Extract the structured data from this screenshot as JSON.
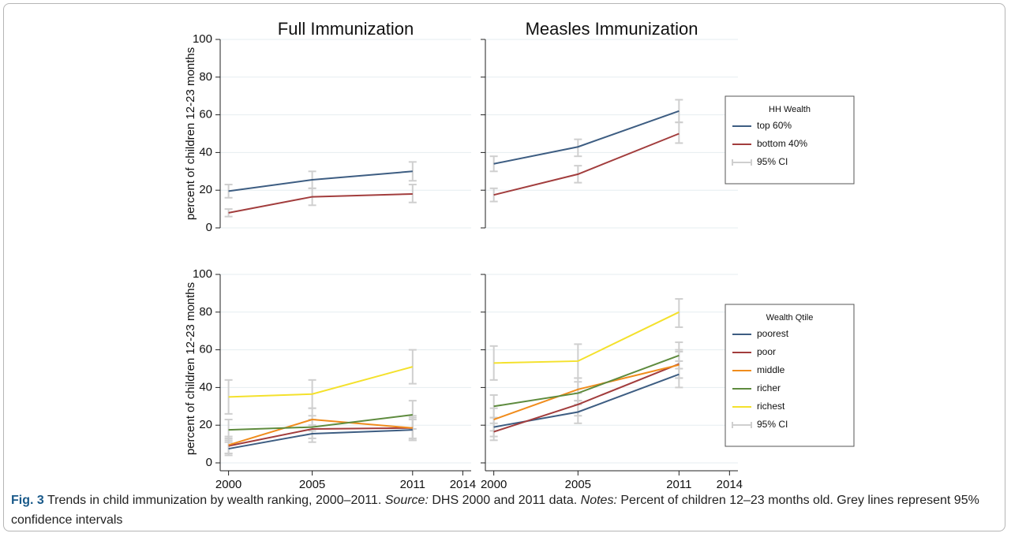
{
  "chart_data": [
    {
      "type": "line",
      "title": "Full Immunization",
      "ylabel": "percent of children 12-23 months",
      "x": [
        2000,
        2005,
        2011
      ],
      "xlim": [
        1999.5,
        2014.5
      ],
      "ylim": [
        0,
        100
      ],
      "yticks": [
        0,
        20,
        40,
        60,
        80,
        100
      ],
      "ytick_labels": true,
      "grid": true,
      "series": [
        {
          "name": "top 60%",
          "color": "#3d5d82",
          "values": [
            19.5,
            25.5,
            30
          ],
          "ci_low": [
            16,
            21,
            25
          ],
          "ci_high": [
            23,
            30,
            35
          ]
        },
        {
          "name": "bottom 40%",
          "color": "#a23d3d",
          "values": [
            8,
            16.5,
            18
          ],
          "ci_low": [
            6,
            12,
            13.5
          ],
          "ci_high": [
            10,
            21,
            23
          ]
        }
      ]
    },
    {
      "type": "line",
      "title": "Measles Immunization",
      "x": [
        2000,
        2005,
        2011
      ],
      "xlim": [
        1999.5,
        2014.5
      ],
      "ylim": [
        0,
        100
      ],
      "yticks": [
        0,
        20,
        40,
        60,
        80,
        100
      ],
      "ytick_labels": false,
      "grid": true,
      "legend": {
        "title": "HH Wealth",
        "ci_label": "95% CI"
      },
      "series": [
        {
          "name": "top 60%",
          "color": "#3d5d82",
          "values": [
            34,
            43,
            62
          ],
          "ci_low": [
            30,
            38,
            56
          ],
          "ci_high": [
            38,
            47,
            68
          ]
        },
        {
          "name": "bottom 40%",
          "color": "#a23d3d",
          "values": [
            17.5,
            28.5,
            50
          ],
          "ci_low": [
            14,
            24,
            45
          ],
          "ci_high": [
            21,
            33,
            56
          ]
        }
      ]
    },
    {
      "type": "line",
      "ylabel": "percent of children 12-23 months",
      "x": [
        2000,
        2005,
        2011
      ],
      "xlim": [
        1999.5,
        2014.5
      ],
      "xticks": [
        2000,
        2005,
        2011,
        2014
      ],
      "ylim": [
        0,
        100
      ],
      "yticks": [
        0,
        20,
        40,
        60,
        80,
        100
      ],
      "ytick_labels": true,
      "grid": true,
      "series": [
        {
          "name": "poorest",
          "color": "#3d5d82",
          "values": [
            7.5,
            15.5,
            17.5
          ],
          "ci_low": [
            4,
            11,
            12
          ],
          "ci_high": [
            11,
            20,
            23
          ]
        },
        {
          "name": "poor",
          "color": "#a23d3d",
          "values": [
            9,
            18,
            18.5
          ],
          "ci_low": [
            5,
            13,
            13
          ],
          "ci_high": [
            13,
            23,
            24
          ]
        },
        {
          "name": "middle",
          "color": "#f08c1c",
          "values": [
            9.5,
            23,
            18.5
          ],
          "ci_low": [
            5,
            17,
            12
          ],
          "ci_high": [
            14,
            29,
            25
          ]
        },
        {
          "name": "richer",
          "color": "#5e8b3e",
          "values": [
            17.5,
            19,
            25.5
          ],
          "ci_low": [
            12,
            13,
            18
          ],
          "ci_high": [
            23,
            25,
            33
          ]
        },
        {
          "name": "richest",
          "color": "#f4e12c",
          "values": [
            35,
            36.5,
            51
          ],
          "ci_low": [
            26,
            29,
            42
          ],
          "ci_high": [
            44,
            44,
            60
          ]
        }
      ]
    },
    {
      "type": "line",
      "x": [
        2000,
        2005,
        2011
      ],
      "xlim": [
        1999.5,
        2014.5
      ],
      "xticks": [
        2000,
        2005,
        2011,
        2014
      ],
      "ylim": [
        0,
        100
      ],
      "yticks": [
        0,
        20,
        40,
        60,
        80,
        100
      ],
      "ytick_labels": false,
      "grid": true,
      "legend": {
        "title": "Wealth Qtile",
        "ci_label": "95% CI"
      },
      "series": [
        {
          "name": "poorest",
          "color": "#3d5d82",
          "values": [
            19,
            27,
            47
          ],
          "ci_low": [
            14,
            21,
            40
          ],
          "ci_high": [
            24,
            33,
            54
          ]
        },
        {
          "name": "poor",
          "color": "#a23d3d",
          "values": [
            16.5,
            31,
            52.5
          ],
          "ci_low": [
            12,
            25,
            45
          ],
          "ci_high": [
            21,
            37,
            60
          ]
        },
        {
          "name": "middle",
          "color": "#f08c1c",
          "values": [
            23,
            39,
            52
          ],
          "ci_low": [
            17,
            33,
            45
          ],
          "ci_high": [
            29,
            45,
            59
          ]
        },
        {
          "name": "richer",
          "color": "#5e8b3e",
          "values": [
            30,
            37,
            57
          ],
          "ci_low": [
            24,
            31,
            50
          ],
          "ci_high": [
            36,
            43,
            64
          ]
        },
        {
          "name": "richest",
          "color": "#f4e12c",
          "values": [
            53,
            54,
            80
          ],
          "ci_low": [
            44,
            45,
            72
          ],
          "ci_high": [
            62,
            63,
            87
          ]
        }
      ]
    }
  ],
  "caption": {
    "label": "Fig. 3",
    "text": "Trends in child immunization by wealth ranking, 2000–2011.",
    "source_label": "Source:",
    "source": "DHS 2000 and 2011 data.",
    "notes_label": "Notes:",
    "notes": "Percent of children 12–23 months old. Grey lines represent 95% confidence intervals"
  }
}
